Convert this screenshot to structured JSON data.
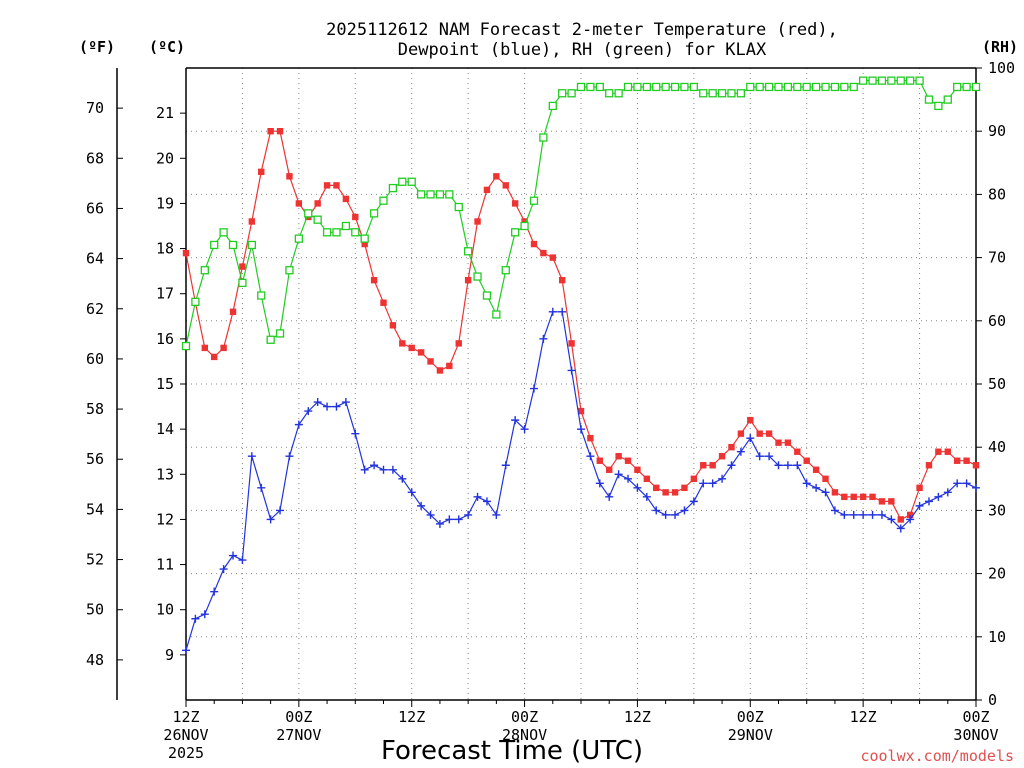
{
  "chart_data": {
    "type": "line",
    "title_line1": "2025112612 NAM Forecast 2-meter Temperature (red),",
    "title_line2": "Dewpoint (blue), RH (green) for KLAX",
    "xlabel": "Forecast Time (UTC)",
    "credit": "coolwx.com/models",
    "x_start": "2025-11-26T12:00Z",
    "x_end": "2025-11-30T00:00Z",
    "x_ticks": [
      {
        "t": "2025-11-26T12:00Z",
        "l1": "12Z",
        "l2": "26NOV",
        "l3": "2025"
      },
      {
        "t": "2025-11-27T00:00Z",
        "l1": "00Z",
        "l2": "27NOV",
        "l3": ""
      },
      {
        "t": "2025-11-27T12:00Z",
        "l1": "12Z",
        "l2": "",
        "l3": ""
      },
      {
        "t": "2025-11-28T00:00Z",
        "l1": "00Z",
        "l2": "28NOV",
        "l3": ""
      },
      {
        "t": "2025-11-28T12:00Z",
        "l1": "12Z",
        "l2": "",
        "l3": ""
      },
      {
        "t": "2025-11-29T00:00Z",
        "l1": "00Z",
        "l2": "29NOV",
        "l3": ""
      },
      {
        "t": "2025-11-29T12:00Z",
        "l1": "12Z",
        "l2": "",
        "l3": ""
      },
      {
        "t": "2025-11-30T00:00Z",
        "l1": "00Z",
        "l2": "30NOV",
        "l3": ""
      }
    ],
    "axes": {
      "fahrenheit": {
        "label": "(ºF)",
        "ticks": [
          48,
          50,
          52,
          54,
          56,
          58,
          60,
          62,
          64,
          66,
          68,
          70
        ],
        "range": [
          46.4,
          71.6
        ]
      },
      "celsius": {
        "label": "(ºC)",
        "ticks": [
          9,
          10,
          11,
          12,
          13,
          14,
          15,
          16,
          17,
          18,
          19,
          20,
          21
        ],
        "range": [
          8,
          22
        ]
      },
      "rh": {
        "label": "(RH)",
        "ticks": [
          0,
          10,
          20,
          30,
          40,
          50,
          60,
          70,
          80,
          90,
          100
        ],
        "range": [
          0,
          100
        ]
      }
    },
    "grid": true,
    "series": [
      {
        "name": "Temperature",
        "color": "#ee3333",
        "axis": "celsius",
        "marker": "filled-square",
        "values": [
          17.9,
          16.8,
          15.8,
          15.6,
          15.8,
          16.6,
          17.6,
          18.6,
          19.7,
          20.6,
          20.6,
          19.6,
          19.0,
          18.7,
          19.0,
          19.4,
          19.4,
          19.1,
          18.7,
          18.1,
          17.3,
          16.8,
          16.3,
          15.9,
          15.8,
          15.7,
          15.5,
          15.3,
          15.4,
          15.9,
          17.3,
          18.6,
          19.3,
          19.6,
          19.4,
          19.0,
          18.6,
          18.1,
          17.9,
          17.8,
          17.3,
          15.9,
          14.4,
          13.8,
          13.3,
          13.1,
          13.4,
          13.3,
          13.1,
          12.9,
          12.7,
          12.6,
          12.6,
          12.7,
          12.9,
          13.2,
          13.2,
          13.4,
          13.6,
          13.9,
          14.2,
          13.9,
          13.9,
          13.7,
          13.7,
          13.5,
          13.3,
          13.1,
          12.9,
          12.6,
          12.5,
          12.5,
          12.5,
          12.5,
          12.4,
          12.4,
          12.0,
          12.1,
          12.7,
          13.2,
          13.5,
          13.5,
          13.3,
          13.3,
          13.2
        ]
      },
      {
        "name": "Dewpoint",
        "color": "#2233dd",
        "axis": "celsius",
        "marker": "plus",
        "values": [
          9.1,
          9.8,
          9.9,
          10.4,
          10.9,
          11.2,
          11.1,
          13.4,
          12.7,
          12.0,
          12.2,
          13.4,
          14.1,
          14.4,
          14.6,
          14.5,
          14.5,
          14.6,
          13.9,
          13.1,
          13.2,
          13.1,
          13.1,
          12.9,
          12.6,
          12.3,
          12.1,
          11.9,
          12.0,
          12.0,
          12.1,
          12.5,
          12.4,
          12.1,
          13.2,
          14.2,
          14.0,
          14.9,
          16.0,
          16.6,
          16.6,
          15.3,
          14.0,
          13.4,
          12.8,
          12.5,
          13.0,
          12.9,
          12.7,
          12.5,
          12.2,
          12.1,
          12.1,
          12.2,
          12.4,
          12.8,
          12.8,
          12.9,
          13.2,
          13.5,
          13.8,
          13.4,
          13.4,
          13.2,
          13.2,
          13.2,
          12.8,
          12.7,
          12.6,
          12.2,
          12.1,
          12.1,
          12.1,
          12.1,
          12.1,
          12.0,
          11.8,
          12.0,
          12.3,
          12.4,
          12.5,
          12.6,
          12.8,
          12.8,
          12.7
        ]
      },
      {
        "name": "RH",
        "color": "#22cc22",
        "axis": "rh",
        "marker": "open-square",
        "values": [
          56,
          63,
          68,
          72,
          74,
          72,
          66,
          72,
          64,
          57,
          58,
          68,
          73,
          77,
          76,
          74,
          74,
          75,
          74,
          73,
          77,
          79,
          81,
          82,
          82,
          80,
          80,
          80,
          80,
          78,
          71,
          67,
          64,
          61,
          68,
          74,
          75,
          79,
          89,
          94,
          96,
          96,
          97,
          97,
          97,
          96,
          96,
          97,
          97,
          97,
          97,
          97,
          97,
          97,
          97,
          96,
          96,
          96,
          96,
          96,
          97,
          97,
          97,
          97,
          97,
          97,
          97,
          97,
          97,
          97,
          97,
          97,
          98,
          98,
          98,
          98,
          98,
          98,
          98,
          95,
          94,
          95,
          97,
          97,
          97
        ]
      }
    ]
  }
}
